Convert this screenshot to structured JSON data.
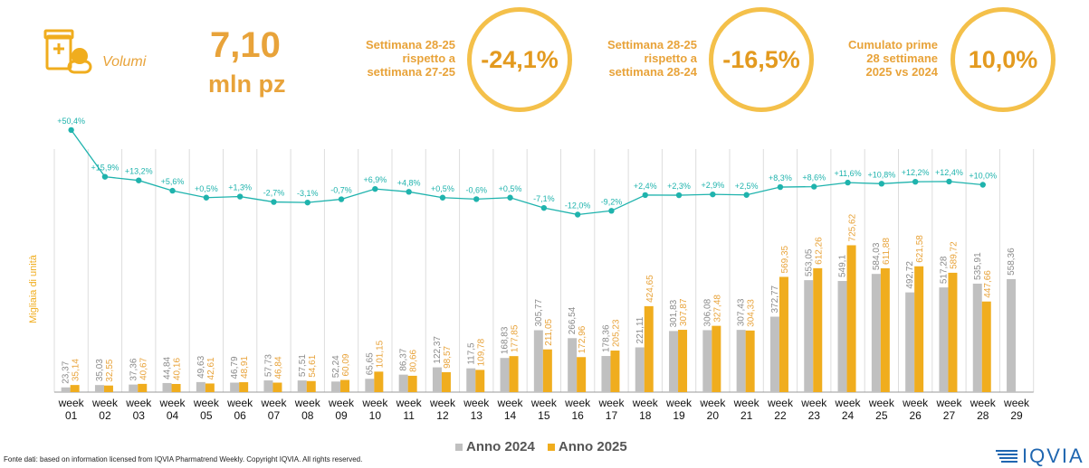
{
  "header": {
    "icon_name": "pill-box-icon",
    "volume_label": "Volumi",
    "volume_value": "7,10",
    "volume_unit": "mln pz",
    "kpis": [
      {
        "label_lines": [
          "Settimana 28-25",
          "rispetto a",
          "settimana 27-25"
        ],
        "value": "-24,1%"
      },
      {
        "label_lines": [
          "Settimana 28-25",
          "rispetto a",
          "settimana 28-24"
        ],
        "value": "-16,5%"
      },
      {
        "label_lines": [
          "Cumulato prime",
          "28 settimane",
          "2025 vs 2024"
        ],
        "value": "10,0%"
      }
    ]
  },
  "colors": {
    "accent": "#f0ad1e",
    "gray": "#c0c0c0",
    "line": "#1fb3ad",
    "kpi_text": "#e8a33a"
  },
  "chart_data": {
    "type": "bar",
    "ylabel": "Migliaia di unità",
    "categories": [
      "week\n01",
      "week\n02",
      "week\n03",
      "week\n04",
      "week\n05",
      "week\n06",
      "week\n07",
      "week\n08",
      "week\n09",
      "week\n10",
      "week\n11",
      "week\n12",
      "week\n13",
      "week\n14",
      "week\n15",
      "week\n16",
      "week\n17",
      "week\n18",
      "week\n19",
      "week\n20",
      "week\n21",
      "week\n22",
      "week\n23",
      "week\n24",
      "week\n25",
      "week\n26",
      "week\n27",
      "week\n28",
      "week\n29"
    ],
    "series": [
      {
        "name": "Anno 2024",
        "color": "#c0c0c0",
        "values": [
          23.37,
          35.03,
          37.36,
          44.84,
          49.63,
          46.79,
          57.73,
          57.51,
          52.24,
          65.65,
          86.37,
          122.37,
          117.5,
          168.83,
          305.77,
          266.54,
          178.36,
          221.11,
          301.83,
          306.08,
          307.43,
          372.77,
          553.05,
          549.1,
          584.03,
          492.72,
          517.28,
          535.91,
          558.36
        ],
        "labels": [
          "23,37",
          "35,03",
          "37,36",
          "44,84",
          "49,63",
          "46,79",
          "57,73",
          "57,51",
          "52,24",
          "65,65",
          "86,37",
          "122,37",
          "117,5",
          "168,83",
          "305,77",
          "266,54",
          "178,36",
          "221,11",
          "301,83",
          "306,08",
          "307,43",
          "372,77",
          "553,05",
          "549,1",
          "584,03",
          "492,72",
          "517,28",
          "535,91",
          "558,36"
        ]
      },
      {
        "name": "Anno 2025",
        "color": "#f0ad1e",
        "values": [
          35.14,
          32.55,
          40.67,
          40.16,
          42.61,
          48.91,
          46.84,
          54.61,
          60.09,
          101.15,
          80.66,
          98.57,
          109.78,
          177.85,
          211.05,
          172.96,
          205.23,
          424.65,
          307.87,
          327.48,
          304.33,
          569.35,
          612.26,
          725.62,
          611.88,
          621.58,
          589.72,
          447.66,
          null
        ],
        "labels": [
          "35,14",
          "32,55",
          "40,67",
          "40,16",
          "42,61",
          "48,91",
          "46,84",
          "54,61",
          "60,09",
          "101,15",
          "80,66",
          "98,57",
          "109,78",
          "177,85",
          "211,05",
          "172,96",
          "205,23",
          "424,65",
          "307,87",
          "327,48",
          "304,33",
          "569,35",
          "612,26",
          "725,62",
          "611,88",
          "621,58",
          "589,72",
          "447,66",
          ""
        ]
      }
    ],
    "line_series": {
      "values": [
        50.4,
        15.9,
        13.2,
        5.6,
        0.5,
        1.3,
        -2.7,
        -3.1,
        -0.7,
        6.9,
        4.8,
        0.5,
        -0.6,
        0.5,
        -7.1,
        -12.0,
        -9.2,
        2.4,
        2.3,
        2.9,
        2.5,
        8.3,
        8.6,
        11.6,
        10.8,
        12.2,
        12.4,
        10.0
      ],
      "labels": [
        "+50,4%",
        "+15,9%",
        "+13,2%",
        "+5,6%",
        "+0,5%",
        "+1,3%",
        "-2,7%",
        "-3,1%",
        "-0,7%",
        "+6,9%",
        "+4,8%",
        "+0,5%",
        "-0,6%",
        "+0,5%",
        "-7,1%",
        "-12,0%",
        "-9,2%",
        "+2,4%",
        "+2,3%",
        "+2,9%",
        "+2,5%",
        "+8,3%",
        "+8,6%",
        "+11,6%",
        "+10,8%",
        "+12,2%",
        "+12,4%",
        "+10,0%"
      ]
    },
    "legend_position": "bottom-center"
  },
  "footer": {
    "source": "Fonte dati: based on information licensed from IQVIA Pharmatrend Weekly. Copyright IQVIA. All rights reserved.",
    "logo": "IQVIA"
  }
}
